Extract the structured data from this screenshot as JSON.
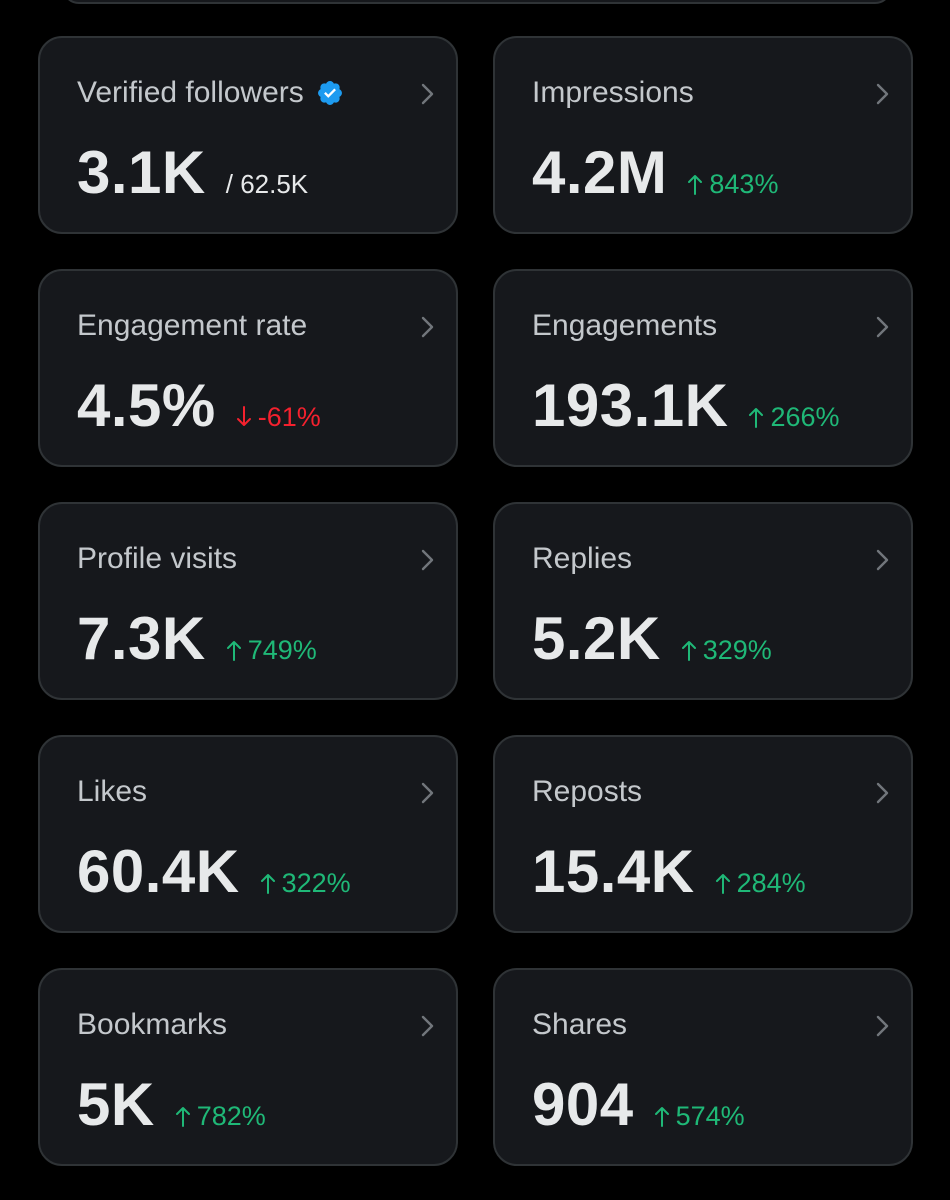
{
  "cards": [
    {
      "id": "verified-followers",
      "label": "Verified followers",
      "value": "3.1K",
      "sub": "/ 62.5K",
      "verified": true
    },
    {
      "id": "impressions",
      "label": "Impressions",
      "value": "4.2M",
      "change": "843%",
      "direction": "up"
    },
    {
      "id": "engagement-rate",
      "label": "Engagement rate",
      "value": "4.5%",
      "change": "-61%",
      "direction": "down"
    },
    {
      "id": "engagements",
      "label": "Engagements",
      "value": "193.1K",
      "change": "266%",
      "direction": "up"
    },
    {
      "id": "profile-visits",
      "label": "Profile visits",
      "value": "7.3K",
      "change": "749%",
      "direction": "up"
    },
    {
      "id": "replies",
      "label": "Replies",
      "value": "5.2K",
      "change": "329%",
      "direction": "up"
    },
    {
      "id": "likes",
      "label": "Likes",
      "value": "60.4K",
      "change": "322%",
      "direction": "up"
    },
    {
      "id": "reposts",
      "label": "Reposts",
      "value": "15.4K",
      "change": "284%",
      "direction": "up"
    },
    {
      "id": "bookmarks",
      "label": "Bookmarks",
      "value": "5K",
      "change": "782%",
      "direction": "up"
    },
    {
      "id": "shares",
      "label": "Shares",
      "value": "904",
      "change": "574%",
      "direction": "up"
    }
  ],
  "icons": {
    "chevron": "chevron-right-icon",
    "verified": "verified-badge-icon",
    "up": "arrow-up-icon",
    "down": "arrow-down-icon"
  },
  "colors": {
    "up": "#1fb877",
    "down": "#f4212e",
    "verified": "#1d9bf0"
  }
}
